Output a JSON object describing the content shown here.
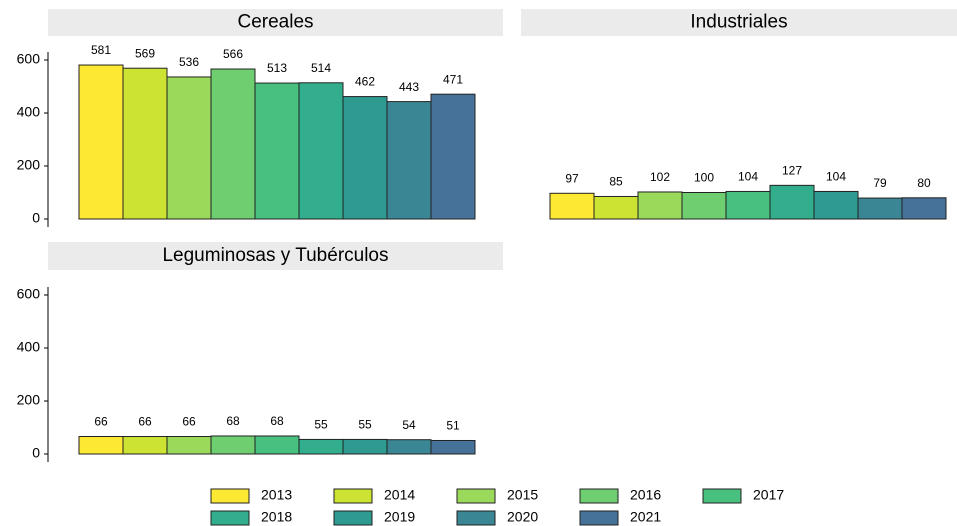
{
  "chart_data": [
    {
      "type": "bar",
      "title": "Cereales",
      "values": [
        581,
        569,
        536,
        566,
        513,
        514,
        462,
        443,
        471
      ],
      "ylim": [
        0,
        600
      ],
      "yticks": [
        0,
        200,
        400,
        600
      ]
    },
    {
      "type": "bar",
      "title": "Industriales",
      "values": [
        97,
        85,
        102,
        100,
        104,
        127,
        104,
        79,
        80
      ],
      "ylim": [
        0,
        600
      ]
    },
    {
      "type": "bar",
      "title": "Leguminosas y Tubérculos",
      "values": [
        66,
        66,
        66,
        68,
        68,
        55,
        55,
        54,
        51
      ],
      "ylim": [
        0,
        600
      ],
      "yticks": [
        0,
        200,
        400,
        600
      ]
    }
  ],
  "legend": {
    "position": "bottom",
    "items": [
      {
        "name": "2013",
        "color": "#fde833"
      },
      {
        "name": "2014",
        "color": "#cde334"
      },
      {
        "name": "2015",
        "color": "#9bd95a"
      },
      {
        "name": "2016",
        "color": "#6ece70"
      },
      {
        "name": "2017",
        "color": "#48c07f"
      },
      {
        "name": "2018",
        "color": "#32ae8d"
      },
      {
        "name": "2019",
        "color": "#2f9b90"
      },
      {
        "name": "2020",
        "color": "#3a8694"
      },
      {
        "name": "2021",
        "color": "#467198"
      }
    ]
  }
}
